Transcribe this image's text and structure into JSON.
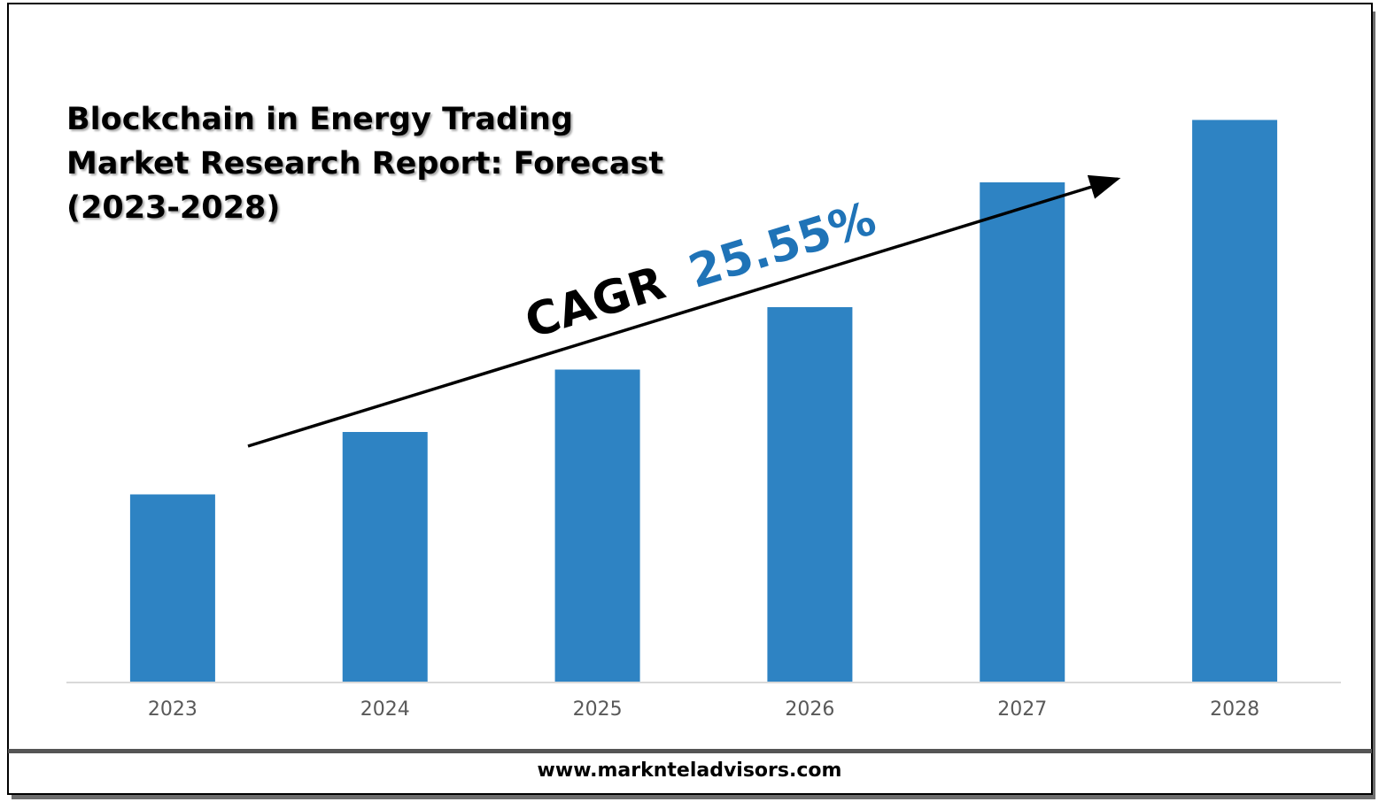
{
  "title_lines": [
    "Blockchain in Energy Trading",
    "Market Research Report: Forecast",
    "(2023-2028)"
  ],
  "cagr": {
    "label": "CAGR",
    "value": "25.55%"
  },
  "footer": {
    "url": "www.marknteladvisors.com"
  },
  "colors": {
    "bar": "#2e83c3",
    "cagr_value": "#1f73b7",
    "axis": "#d9d9d9",
    "tick_text": "#595959"
  },
  "chart_data": {
    "type": "bar",
    "categories": [
      "2023",
      "2024",
      "2025",
      "2026",
      "2027",
      "2028"
    ],
    "values": [
      3.0,
      4.0,
      5.0,
      6.0,
      8.0,
      9.0
    ],
    "ylim": [
      0,
      10
    ],
    "grid": false,
    "xlabel": "",
    "ylabel": "",
    "legend": "none"
  }
}
